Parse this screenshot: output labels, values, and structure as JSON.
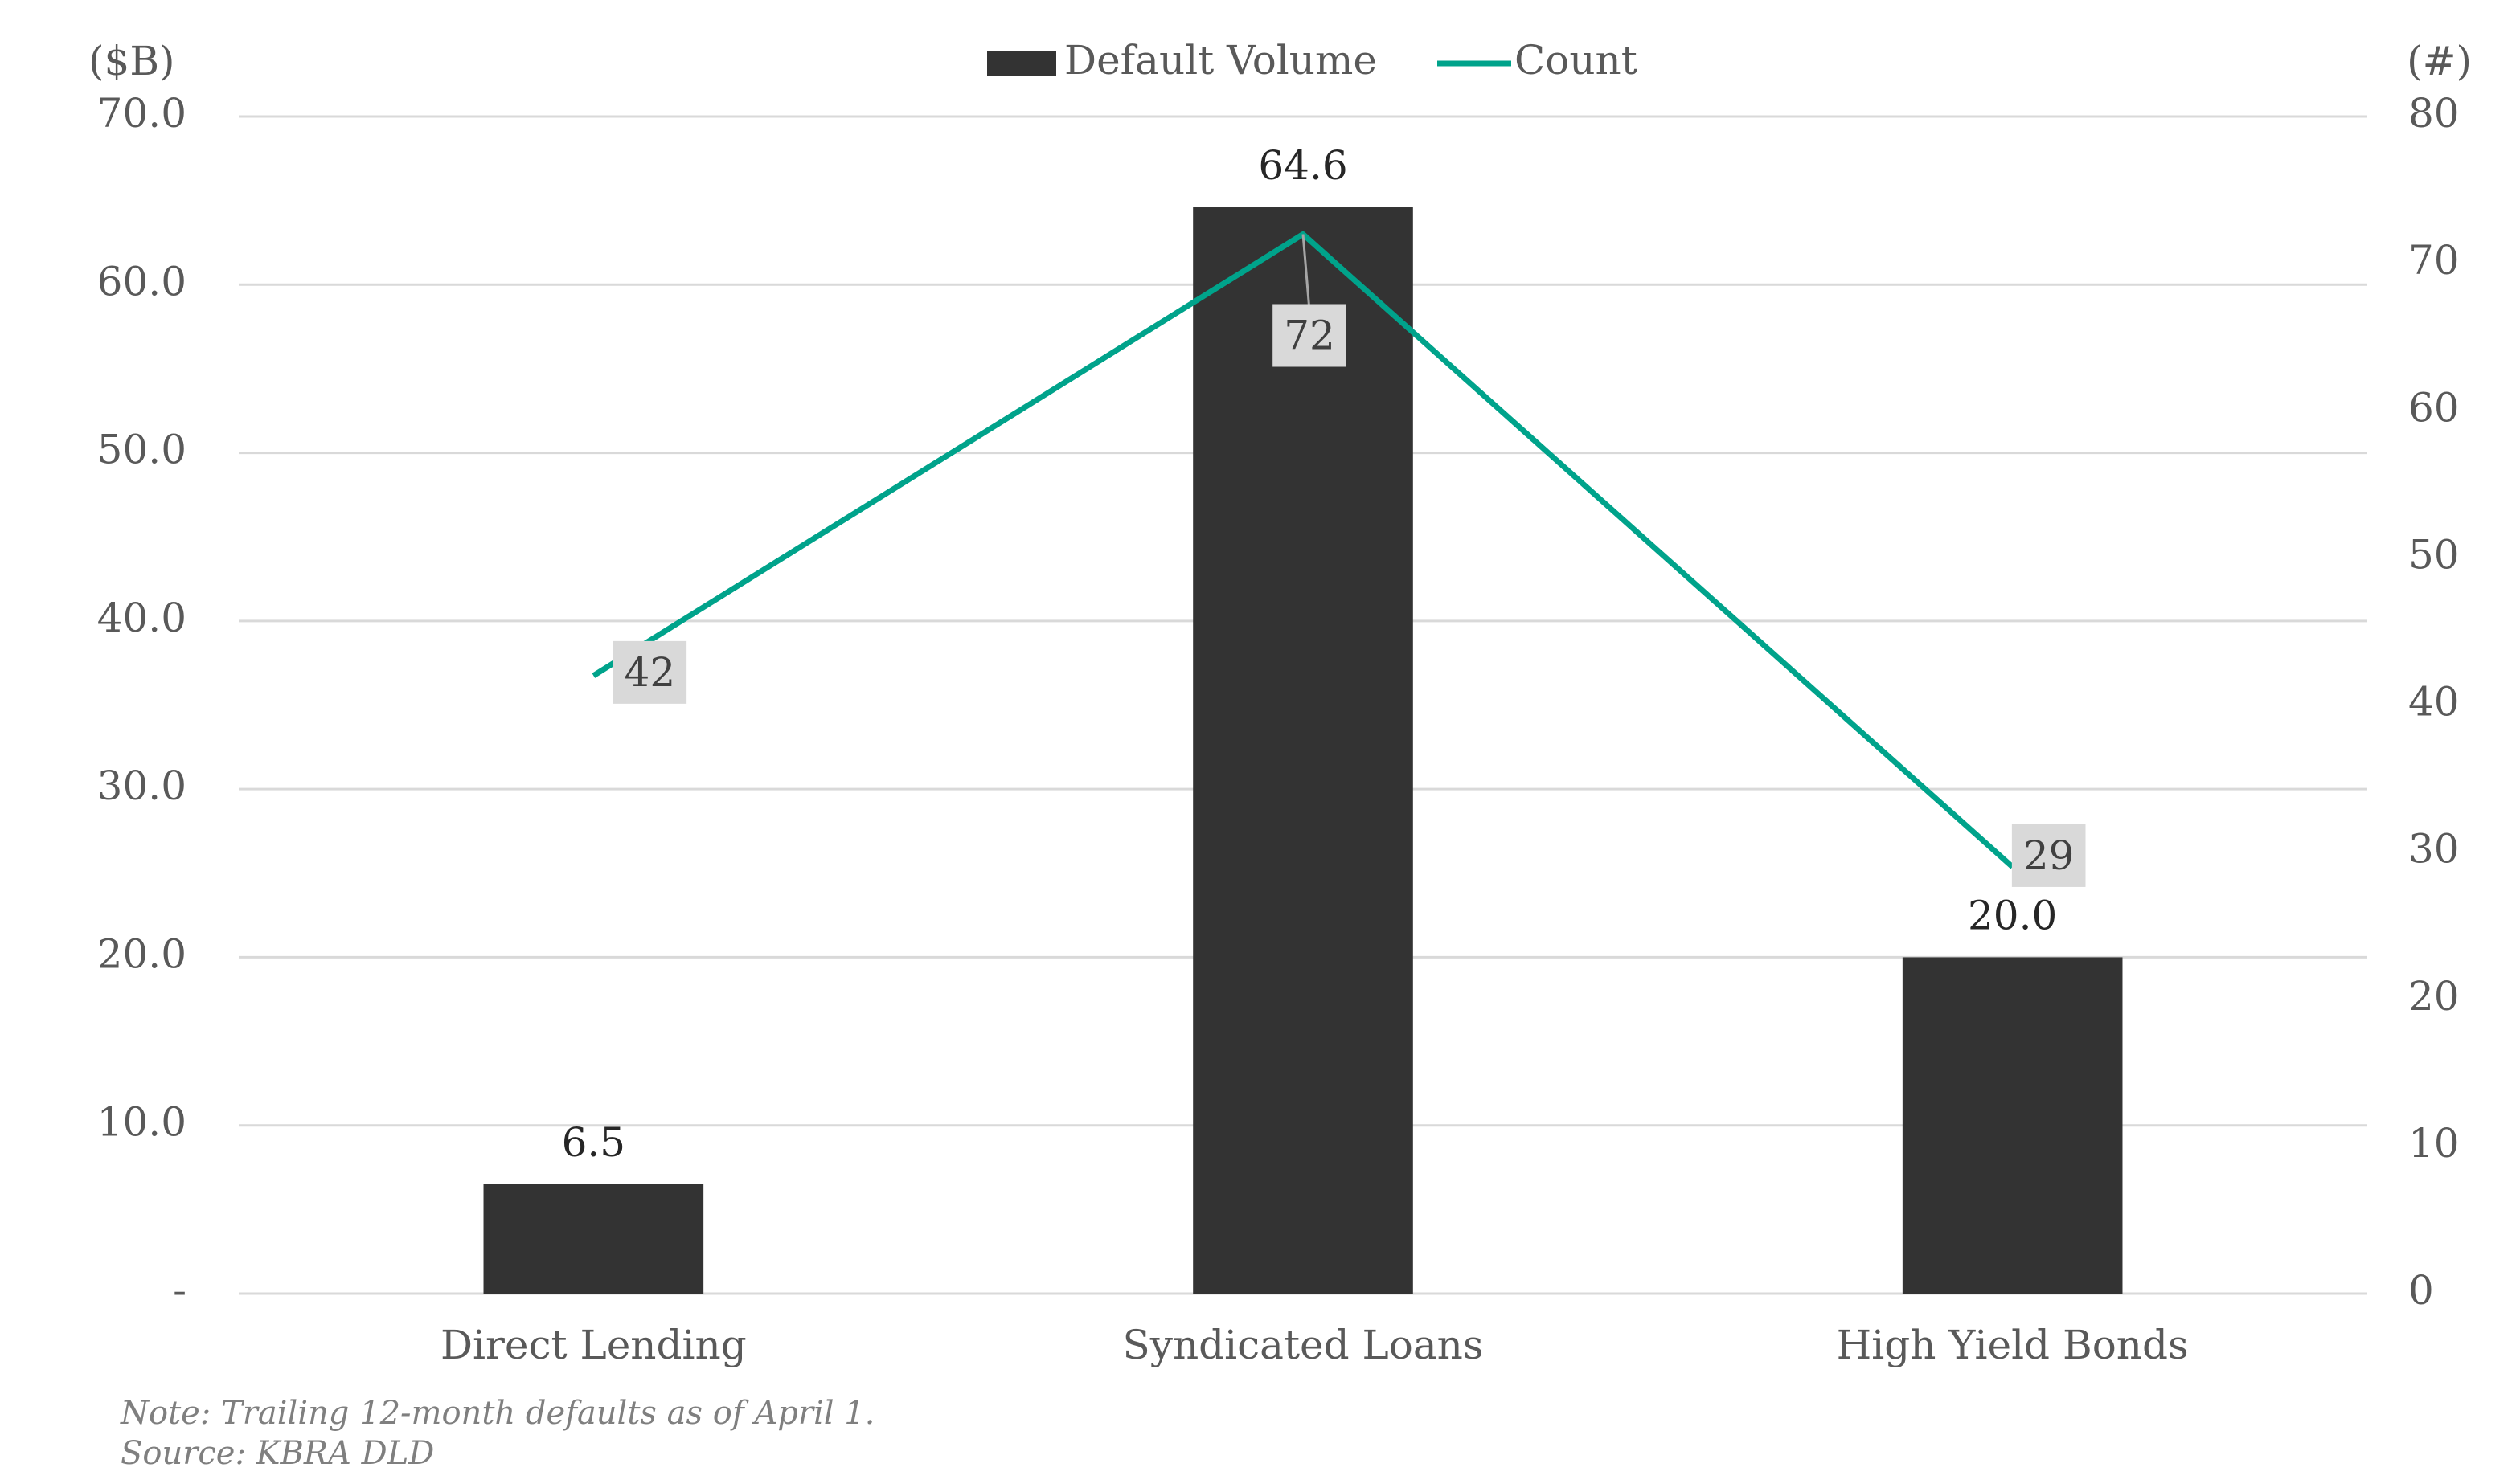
{
  "chart_data": {
    "type": "bar",
    "categories": [
      "Direct Lending",
      "Syndicated Loans",
      "High Yield Bonds"
    ],
    "series": [
      {
        "name": "Default Volume",
        "type": "bar",
        "color": "#333333",
        "values": [
          6.5,
          64.6,
          20.0
        ],
        "value_labels": [
          "6.5",
          "64.6",
          "20.0"
        ]
      },
      {
        "name": "Count",
        "type": "line",
        "axis": "y2",
        "color": "#00a38b",
        "values": [
          42,
          72,
          29
        ]
      }
    ],
    "ylabel": "($B)",
    "y2label": "(#)",
    "ylim": [
      0,
      70
    ],
    "yticks": [
      {
        "value": 0,
        "label": "-"
      },
      {
        "value": 10,
        "label": "10.0"
      },
      {
        "value": 20,
        "label": "20.0"
      },
      {
        "value": 30,
        "label": "30.0"
      },
      {
        "value": 40,
        "label": "40.0"
      },
      {
        "value": 50,
        "label": "50.0"
      },
      {
        "value": 60,
        "label": "60.0"
      },
      {
        "value": 70,
        "label": "70.0"
      }
    ],
    "y2lim": [
      0,
      80
    ],
    "y2ticks": [
      0,
      10,
      20,
      30,
      40,
      50,
      60,
      70,
      80
    ],
    "grid": true,
    "legend": "top",
    "notes": [
      "Note: Trailing 12-month defaults as of April 1.",
      "Source: KBRA DLD"
    ]
  }
}
